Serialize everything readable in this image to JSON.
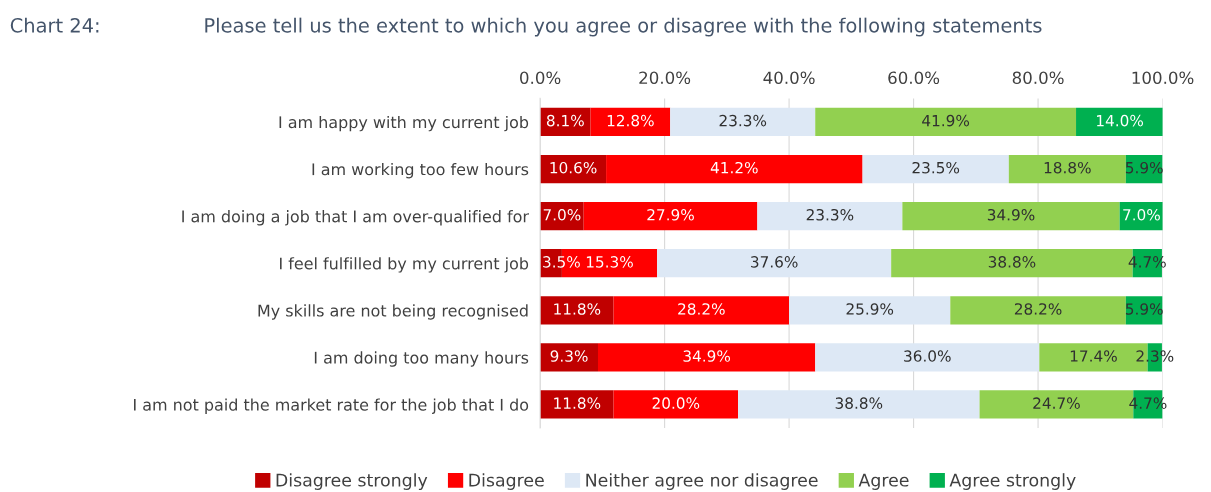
{
  "chart_data": {
    "type": "bar",
    "orientation": "horizontal",
    "stacked": true,
    "title": "Chart 24:",
    "subtitle": "Please tell us the extent to which you agree or disagree with the following statements",
    "categories": [
      "I am happy with my current job",
      "I am working too few hours",
      "I am doing a job that I am over-qualified for",
      "I feel fulfilled by my current job",
      "My skills are not being recognised",
      "I am doing too many hours",
      "I am not paid the market rate for the job that I do"
    ],
    "series": [
      {
        "name": "Disagree strongly",
        "color": "#c00000",
        "values": [
          8.1,
          10.6,
          7.0,
          3.5,
          11.8,
          9.3,
          11.8
        ],
        "value_labels": [
          "8.1%",
          "10.6%",
          "7.0%",
          "3.5%",
          "11.8%",
          "9.3%",
          "11.8%"
        ]
      },
      {
        "name": "Disagree",
        "color": "#ff0000",
        "values": [
          12.8,
          41.2,
          27.9,
          15.3,
          28.2,
          34.9,
          20.0
        ],
        "value_labels": [
          "12.8%",
          "41.2%",
          "27.9%",
          "15.3%",
          "28.2%",
          "34.9%",
          "20.0%"
        ]
      },
      {
        "name": "Neither agree nor disagree",
        "color": "#dde8f5",
        "values": [
          23.3,
          23.5,
          23.3,
          37.6,
          25.9,
          36.0,
          38.8
        ],
        "value_labels": [
          "23.3%",
          "23.5%",
          "23.3%",
          "37.6%",
          "25.9%",
          "36.0%",
          "38.8%"
        ]
      },
      {
        "name": "Agree",
        "color": "#92d050",
        "values": [
          41.9,
          18.8,
          34.9,
          38.8,
          28.2,
          17.4,
          24.7
        ],
        "value_labels": [
          "41.9%",
          "18.8%",
          "34.9%",
          "38.8%",
          "28.2%",
          "17.4%",
          "24.7%"
        ]
      },
      {
        "name": "Agree strongly",
        "color": "#00b050",
        "values": [
          14.0,
          5.9,
          7.0,
          4.7,
          5.9,
          2.3,
          4.7
        ],
        "value_labels": [
          "14.0%",
          "5.9%",
          "7.0%",
          "4.7%",
          "5.9%",
          "2.3%",
          "4.7%"
        ]
      }
    ],
    "xlim": [
      0,
      100
    ],
    "xticks": [
      {
        "value": 0,
        "label": "0.0%"
      },
      {
        "value": 20,
        "label": "20.0%"
      },
      {
        "value": 40,
        "label": "40.0%"
      },
      {
        "value": 60,
        "label": "60.0%"
      },
      {
        "value": 80,
        "label": "80.0%"
      },
      {
        "value": 100,
        "label": "100.0%"
      }
    ],
    "grid": "x",
    "legend": "bottom"
  }
}
